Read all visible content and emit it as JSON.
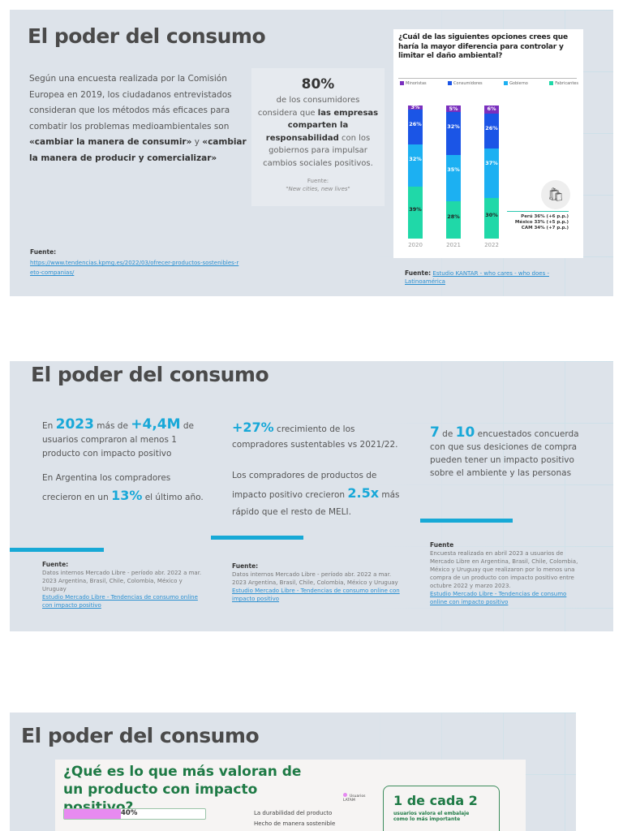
{
  "slide1": {
    "title": "El poder del consumo",
    "para": {
      "t1": "Según una encuesta realizada por la Comisión Europea en 2019, los ciudadanos entrevistados consideran que los métodos más eficaces para combatir los problemas medioambientales son ",
      "b1": "«cambiar la manera de consumir»",
      "t2": " y ",
      "b2": "«cambiar la manera de producir y comercializar»"
    },
    "source_label": "Fuente:",
    "source_link": "https://www.tendencias.kpmg.es/2022/03/ofrecer-productos-sostenibles-reto-companias/",
    "stat": {
      "value": "80%",
      "t1": "de los consumidores considera que ",
      "b1": "las empresas comparten la responsabilidad",
      "t2": " con los gobiernos para impulsar cambios sociales positivos.",
      "source_label": "Fuente:",
      "source": "\"New cities, new lives\""
    },
    "chart_footer": {
      "label": "Fuente:",
      "link": "Estudio KANTAR - who cares - who does - Latinoamérica"
    }
  },
  "chart_data": {
    "type": "bar",
    "stacked": true,
    "title": "¿Cuál de las siguientes opciones crees que haría la mayor diferencia para controlar y limitar el daño ambiental?",
    "categories": [
      "2020",
      "2021",
      "2022"
    ],
    "series": [
      {
        "name": "Minoristas",
        "color": "#7a2fbe",
        "values": [
          3,
          5,
          6
        ]
      },
      {
        "name": "Consumidores",
        "color": "#1b55e6",
        "values": [
          26,
          32,
          26
        ]
      },
      {
        "name": "Gobierno",
        "color": "#1cb0f2",
        "values": [
          32,
          35,
          37
        ]
      },
      {
        "name": "Fabricantes",
        "color": "#20d8a8",
        "values": [
          39,
          28,
          30
        ]
      }
    ],
    "annotations": [
      "Perú 36% (+6 p.p.)",
      "México 33% (+5 p.p.)",
      "CAM 34% (+7 p.p.)"
    ],
    "legend": "top"
  },
  "slide2": {
    "title": "El poder del consumo",
    "col1": {
      "a1": "En ",
      "y": "2023",
      "a2": " más de ",
      "n": "+4,4M",
      "a3": " de usuarios compraron al menos 1 producto con impacto positivo",
      "b1": "En Argentina los compradores crecieron en un ",
      "bp": "13%",
      "b2": " el último año.",
      "source_label": "Fuente:",
      "source": "Datos internos Mercado Libre - período abr. 2022 a mar. 2023 Argentina, Brasil, Chile, Colombia, México y Uruguay",
      "link": "Estudio Mercado Libre - Tendencias de consumo online  con impacto positivo"
    },
    "col2": {
      "p": "+27%",
      "a1": " crecimiento de los compradores sustentables  vs 2021/22.",
      "b1": "Los compradores de productos de impacto positivo crecieron ",
      "x": "2.5x",
      "b2": " más rápido que el resto de MELI.",
      "source_label": "Fuente:",
      "source": "Datos internos Mercado Libre - período abr. 2022 a mar. 2023 Argentina, Brasil, Chile, Colombia, México y Uruguay",
      "link": "Estudio Mercado Libre - Tendencias de consumo online  con impacto positivo"
    },
    "col3": {
      "n1": "7",
      "de": " de ",
      "n2": "10",
      "a1": " encuestados concuerda con que sus desiciones de compra pueden tener un impacto positivo sobre el ambiente y las personas",
      "source_label": "Fuente",
      "source": "Encuesta realizada en abril 2023 a usuarios de Mercado Libre en Argentina, Brasil, Chile, Colombia, México y Uruguay que realizaron por lo menos una compra de un producto con impacto positivo entre octubre 2022 y marzo 2023.",
      "link": "Estudio Mercado Libre - Tendencias de consumo online  con impacto positivo"
    }
  },
  "slide3": {
    "title": "El poder del consumo",
    "question": "¿Qué es lo que más valoran de un producto con impacto positivo?",
    "legend": "Usuarios LATAM",
    "bars": [
      {
        "value": 40,
        "label": "40%",
        "text": "La durabilidad del producto"
      },
      {
        "text": "Hecho de manera sostenible"
      }
    ],
    "stat": {
      "value": "1 de cada 2",
      "text": "usuarios valora el embalaje como lo más importante"
    }
  }
}
